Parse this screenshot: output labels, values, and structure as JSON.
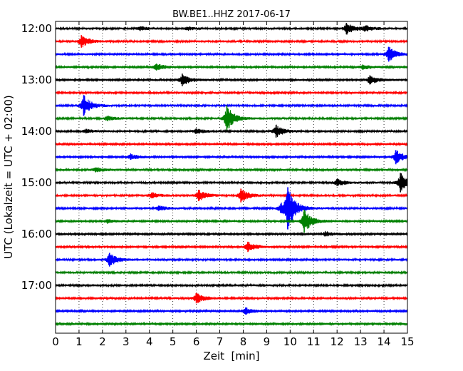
{
  "chart_data": {
    "type": "line",
    "title": "BW.BE1..HHZ 2017-06-17",
    "xlabel": "Zeit  [min]",
    "ylabel": "UTC (Lokalzeit = UTC + 02:00)",
    "xlim": [
      0,
      15
    ],
    "x_ticks": [
      "0",
      "1",
      "2",
      "3",
      "4",
      "5",
      "6",
      "7",
      "8",
      "9",
      "10",
      "11",
      "12",
      "13",
      "14",
      "15"
    ],
    "y_ticks": [
      "12:00",
      "13:00",
      "14:00",
      "15:00",
      "16:00",
      "17:00"
    ],
    "grid": true,
    "trace_colors": [
      "#000000",
      "#ff0000",
      "#0000ff",
      "#008000"
    ],
    "traces": [
      {
        "start": "12:00",
        "events": [
          {
            "t": 12.4,
            "amp": 1.0
          },
          {
            "t": 13.2,
            "amp": 0.5
          },
          {
            "t": 3.6,
            "amp": 0.3
          },
          {
            "t": 5.6,
            "amp": 0.3
          }
        ]
      },
      {
        "start": "12:15",
        "events": [
          {
            "t": 1.1,
            "amp": 1.1
          }
        ]
      },
      {
        "start": "12:30",
        "events": [
          {
            "t": 14.2,
            "amp": 1.3
          }
        ]
      },
      {
        "start": "12:45",
        "events": [
          {
            "t": 4.3,
            "amp": 0.6
          },
          {
            "t": 13.1,
            "amp": 0.4
          }
        ]
      },
      {
        "start": "13:00",
        "events": [
          {
            "t": 5.4,
            "amp": 1.1
          },
          {
            "t": 13.4,
            "amp": 0.8
          }
        ]
      },
      {
        "start": "13:15",
        "events": []
      },
      {
        "start": "13:30",
        "events": [
          {
            "t": 1.2,
            "amp": 1.8
          }
        ]
      },
      {
        "start": "13:45",
        "events": [
          {
            "t": 7.3,
            "amp": 2.3
          },
          {
            "t": 2.2,
            "amp": 0.4
          }
        ]
      },
      {
        "start": "14:00",
        "events": [
          {
            "t": 9.4,
            "amp": 1.1
          },
          {
            "t": 6.0,
            "amp": 0.4
          },
          {
            "t": 1.3,
            "amp": 0.3
          }
        ]
      },
      {
        "start": "14:15",
        "events": []
      },
      {
        "start": "14:30",
        "events": [
          {
            "t": 14.5,
            "amp": 1.2
          },
          {
            "t": 3.2,
            "amp": 0.5
          }
        ]
      },
      {
        "start": "14:45",
        "events": [
          {
            "t": 1.7,
            "amp": 0.4
          }
        ]
      },
      {
        "start": "15:00",
        "events": [
          {
            "t": 14.7,
            "amp": 1.7
          },
          {
            "t": 12.0,
            "amp": 0.6
          }
        ]
      },
      {
        "start": "15:15",
        "events": [
          {
            "t": 6.1,
            "amp": 1.0
          },
          {
            "t": 7.9,
            "amp": 1.2
          },
          {
            "t": 4.1,
            "amp": 0.5
          }
        ]
      },
      {
        "start": "15:30",
        "events": [
          {
            "t": 9.9,
            "amp": 3.7
          },
          {
            "t": 9.6,
            "amp": 0.8
          },
          {
            "t": 4.4,
            "amp": 0.4
          }
        ]
      },
      {
        "start": "15:45",
        "events": [
          {
            "t": 10.6,
            "amp": 2.0
          },
          {
            "t": 2.2,
            "amp": 0.3
          }
        ]
      },
      {
        "start": "16:00",
        "events": [
          {
            "t": 11.5,
            "amp": 0.4
          }
        ]
      },
      {
        "start": "16:15",
        "events": [
          {
            "t": 8.2,
            "amp": 0.9
          }
        ]
      },
      {
        "start": "16:30",
        "events": [
          {
            "t": 2.3,
            "amp": 1.2
          }
        ]
      },
      {
        "start": "16:45",
        "events": []
      },
      {
        "start": "17:00",
        "events": []
      },
      {
        "start": "17:15",
        "events": [
          {
            "t": 6.0,
            "amp": 0.9
          }
        ]
      },
      {
        "start": "17:30",
        "events": [
          {
            "t": 8.1,
            "amp": 0.6
          }
        ]
      },
      {
        "start": "17:45",
        "events": []
      }
    ]
  }
}
